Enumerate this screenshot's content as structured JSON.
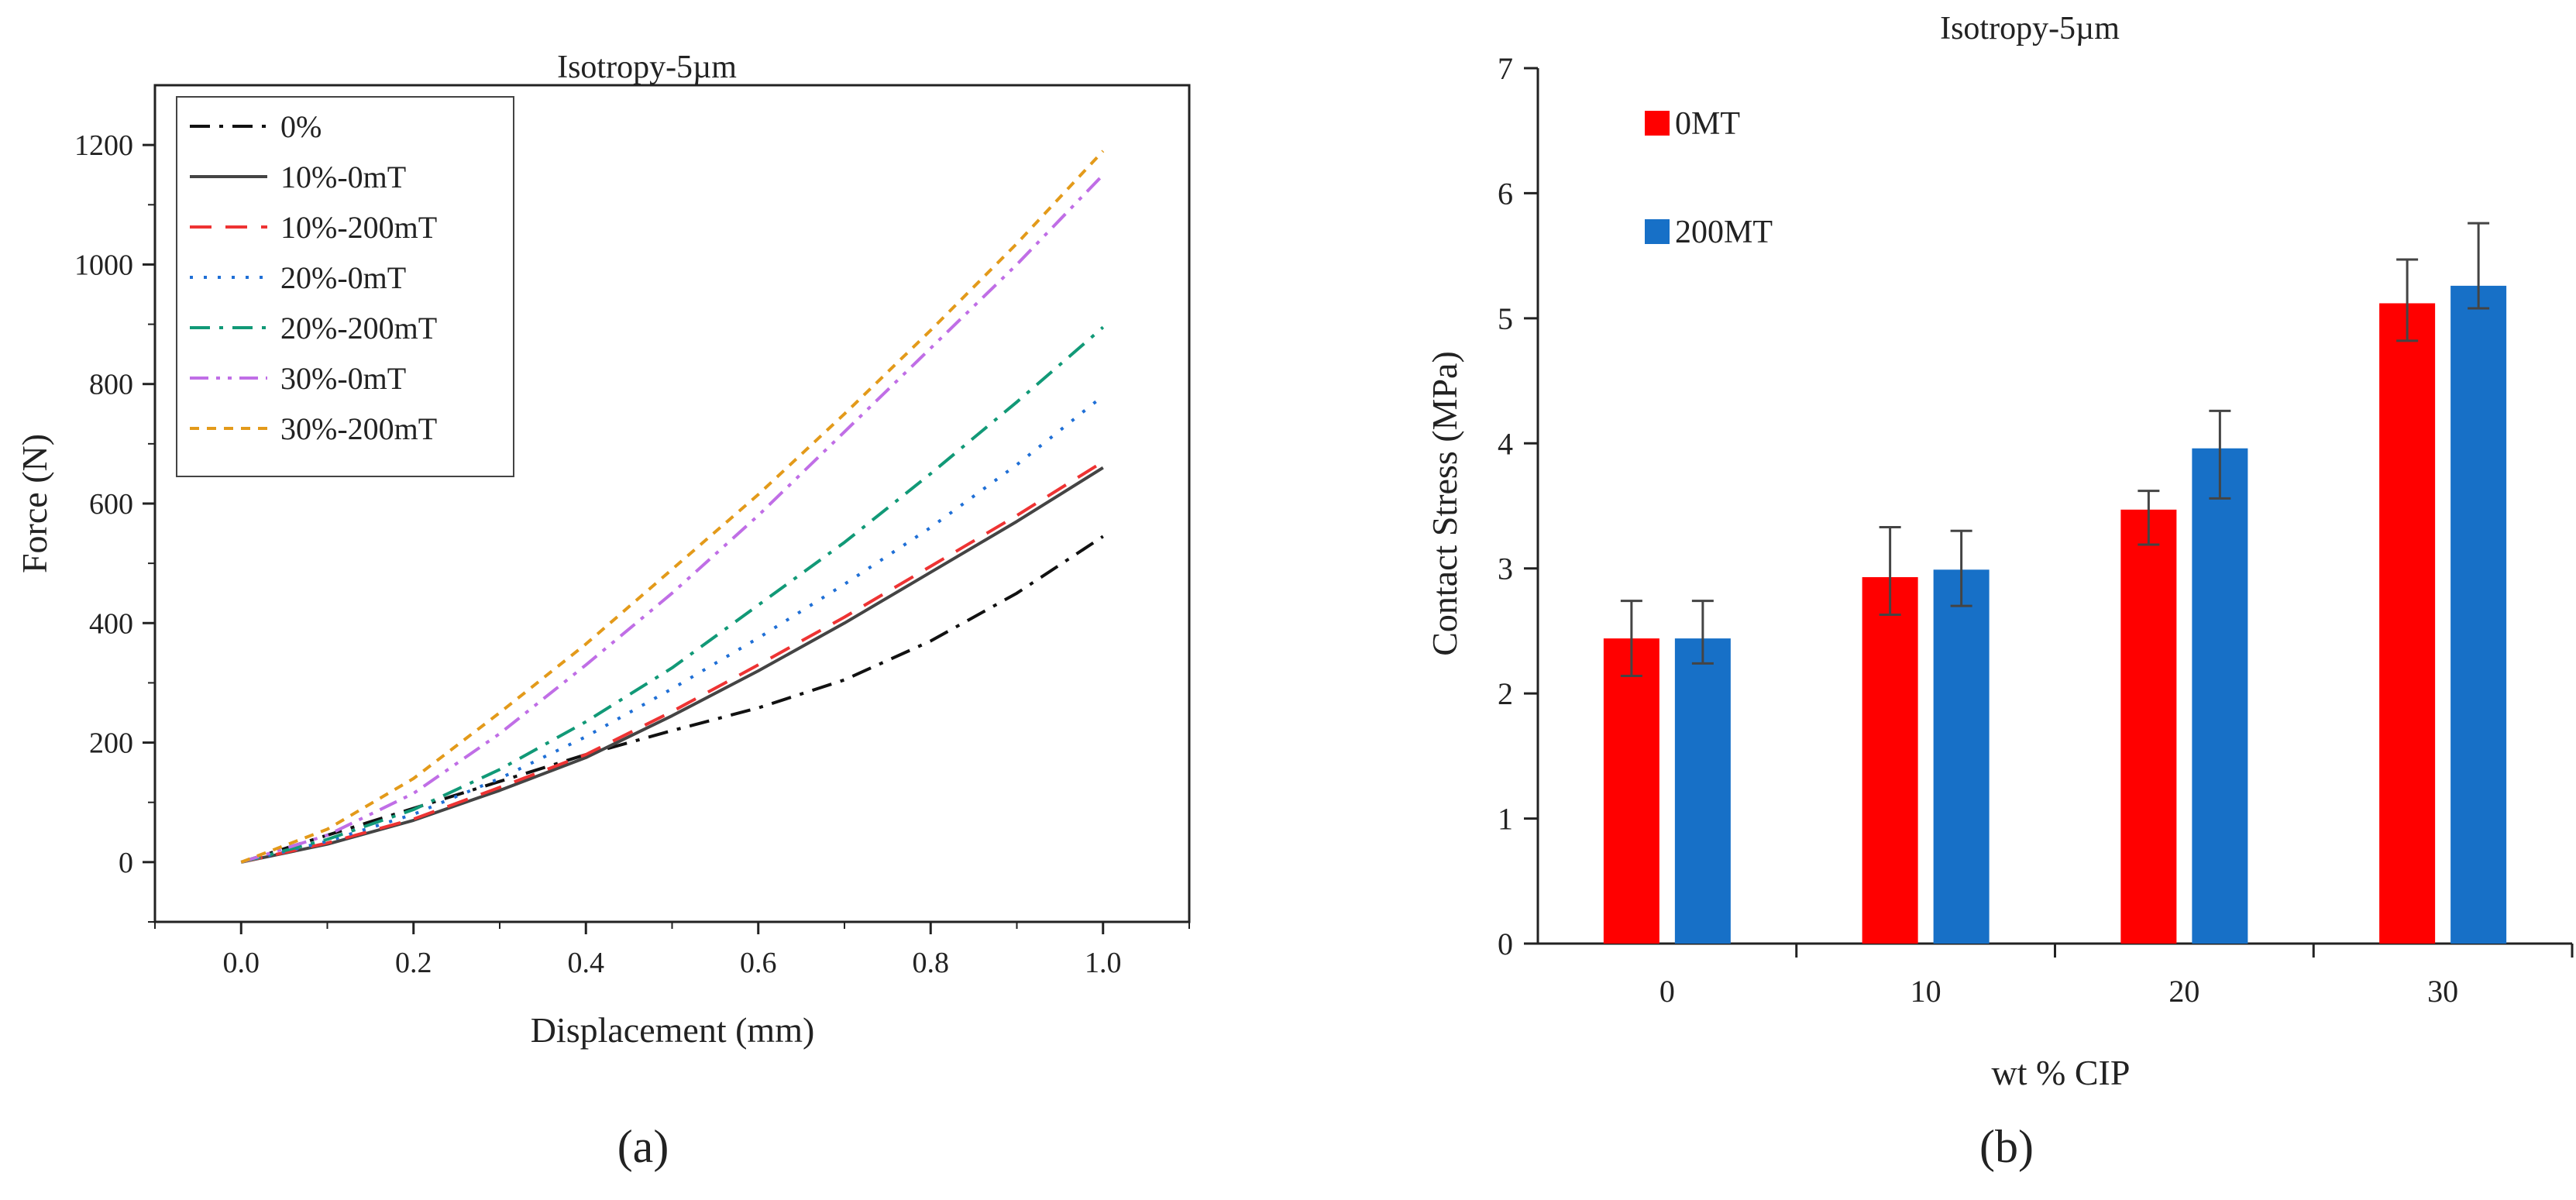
{
  "chart_data": [
    {
      "type": "line",
      "title": "Isotropy-5µm",
      "xlabel": "Displacement (mm)",
      "ylabel": "Force (N)",
      "xlim": [
        -0.1,
        1.1
      ],
      "ylim": [
        -100,
        1300
      ],
      "xticks": [
        0.0,
        0.2,
        0.4,
        0.6,
        0.8,
        1.0
      ],
      "xtick_labels": [
        "0.0",
        "0.2",
        "0.4",
        "0.6",
        "0.8",
        "1.0"
      ],
      "yticks": [
        0,
        200,
        400,
        600,
        800,
        1000,
        1200
      ],
      "ytick_labels": [
        "0",
        "200",
        "400",
        "600",
        "800",
        "1000",
        "1200"
      ],
      "grid": false,
      "legend_position": "top-left",
      "panel_label": "(a)",
      "series": [
        {
          "name": "0%",
          "color": "#111111",
          "dash": "dashdot",
          "x": [
            0,
            0.1,
            0.2,
            0.3,
            0.4,
            0.5,
            0.6,
            0.7,
            0.8,
            0.9,
            1.0
          ],
          "y": [
            0,
            45,
            90,
            135,
            180,
            220,
            258,
            305,
            370,
            450,
            545
          ]
        },
        {
          "name": "10%-0mT",
          "color": "#444444",
          "dash": "solid",
          "x": [
            0,
            0.1,
            0.2,
            0.3,
            0.4,
            0.5,
            0.6,
            0.7,
            0.8,
            0.9,
            1.0
          ],
          "y": [
            0,
            30,
            70,
            120,
            175,
            245,
            320,
            400,
            485,
            570,
            660
          ]
        },
        {
          "name": "10%-200mT",
          "color": "#ee3333",
          "dash": "dash",
          "x": [
            0,
            0.1,
            0.2,
            0.3,
            0.4,
            0.5,
            0.6,
            0.7,
            0.8,
            0.9,
            1.0
          ],
          "y": [
            0,
            32,
            72,
            125,
            180,
            252,
            330,
            410,
            495,
            580,
            670
          ]
        },
        {
          "name": "20%-0mT",
          "color": "#1f6fd6",
          "dash": "dot",
          "x": [
            0,
            0.1,
            0.2,
            0.3,
            0.4,
            0.5,
            0.6,
            0.7,
            0.8,
            0.9,
            1.0
          ],
          "y": [
            0,
            35,
            80,
            140,
            210,
            290,
            375,
            465,
            560,
            665,
            780
          ]
        },
        {
          "name": "20%-200mT",
          "color": "#119977",
          "dash": "dashdot",
          "x": [
            0,
            0.1,
            0.2,
            0.3,
            0.4,
            0.5,
            0.6,
            0.7,
            0.8,
            0.9,
            1.0
          ],
          "y": [
            0,
            38,
            88,
            155,
            235,
            325,
            430,
            535,
            650,
            770,
            895
          ]
        },
        {
          "name": "30%-0mT",
          "color": "#c06ee6",
          "dash": "dashdotdot",
          "x": [
            0,
            0.1,
            0.2,
            0.3,
            0.4,
            0.5,
            0.6,
            0.7,
            0.8,
            0.9,
            1.0
          ],
          "y": [
            0,
            45,
            115,
            215,
            330,
            450,
            580,
            720,
            860,
            1000,
            1150
          ]
        },
        {
          "name": "30%-200mT",
          "color": "#e39a1a",
          "dash": "shortdash",
          "x": [
            0,
            0.1,
            0.2,
            0.3,
            0.4,
            0.5,
            0.6,
            0.7,
            0.8,
            0.9,
            1.0
          ],
          "y": [
            0,
            55,
            140,
            250,
            365,
            490,
            615,
            750,
            890,
            1035,
            1190
          ]
        }
      ]
    },
    {
      "type": "bar",
      "title": "Isotropy-5µm",
      "xlabel": "wt % CIP",
      "ylabel": "Contact Stress (MPa)",
      "ylim": [
        0,
        7
      ],
      "yticks": [
        0,
        1,
        2,
        3,
        4,
        5,
        6,
        7
      ],
      "ytick_labels": [
        "0",
        "1",
        "2",
        "3",
        "4",
        "5",
        "6",
        "7"
      ],
      "categories": [
        "0",
        "10",
        "20",
        "30"
      ],
      "grid": false,
      "legend_position": "top-left",
      "panel_label": "(b)",
      "series": [
        {
          "name": "0MT",
          "color": "#ff0000",
          "values": [
            2.44,
            2.93,
            3.47,
            5.12
          ],
          "err_low": [
            2.14,
            2.63,
            3.19,
            4.82
          ],
          "err_high": [
            2.74,
            3.33,
            3.62,
            5.47
          ]
        },
        {
          "name": "200MT",
          "color": "#1770c7",
          "values": [
            2.44,
            2.99,
            3.96,
            5.26
          ],
          "err_low": [
            2.24,
            2.7,
            3.56,
            5.08
          ],
          "err_high": [
            2.74,
            3.3,
            4.26,
            5.76
          ]
        }
      ]
    }
  ]
}
